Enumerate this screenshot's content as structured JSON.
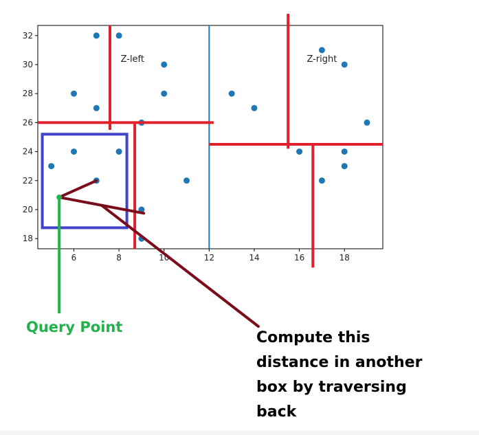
{
  "chart_data": {
    "type": "scatter",
    "title": "",
    "xlabel": "",
    "ylabel": "",
    "xlim": [
      4.4,
      19.7
    ],
    "ylim": [
      17.3,
      32.7
    ],
    "xticks": [
      6,
      8,
      10,
      12,
      14,
      16,
      18
    ],
    "yticks": [
      18,
      20,
      22,
      24,
      26,
      28,
      30,
      32
    ],
    "grid": false,
    "point_color": "#1f77b4",
    "points": [
      {
        "x": 7,
        "y": 32
      },
      {
        "x": 8,
        "y": 32
      },
      {
        "x": 10,
        "y": 30
      },
      {
        "x": 6,
        "y": 28
      },
      {
        "x": 10,
        "y": 28
      },
      {
        "x": 7,
        "y": 27
      },
      {
        "x": 9,
        "y": 26
      },
      {
        "x": 5,
        "y": 23
      },
      {
        "x": 6,
        "y": 24
      },
      {
        "x": 8,
        "y": 24
      },
      {
        "x": 7,
        "y": 22
      },
      {
        "x": 9,
        "y": 20
      },
      {
        "x": 9,
        "y": 18
      },
      {
        "x": 11,
        "y": 22
      },
      {
        "x": 13,
        "y": 28
      },
      {
        "x": 14,
        "y": 27
      },
      {
        "x": 17,
        "y": 31
      },
      {
        "x": 18,
        "y": 30
      },
      {
        "x": 19,
        "y": 26
      },
      {
        "x": 16,
        "y": 24
      },
      {
        "x": 18,
        "y": 24
      },
      {
        "x": 18,
        "y": 23
      },
      {
        "x": 17,
        "y": 22
      }
    ],
    "split_lines": [
      {
        "name": "root-split-x12",
        "orientation": "vertical",
        "at": 12,
        "from": 17.3,
        "to": 32.7,
        "color": "#1f77b4"
      },
      {
        "name": "left-split-y26",
        "orientation": "horizontal",
        "at": 26,
        "from": 4.4,
        "to": 12.2,
        "color": "#e0202a"
      },
      {
        "name": "left-top-split-x7.6",
        "orientation": "vertical",
        "at": 7.6,
        "from": 25.5,
        "to": 32.7,
        "color": "#e0202a"
      },
      {
        "name": "left-bottom-split-x8.7",
        "orientation": "vertical",
        "at": 8.7,
        "from": 17.3,
        "to": 26,
        "color": "#e0202a"
      },
      {
        "name": "right-split-y24.5",
        "orientation": "horizontal",
        "at": 24.5,
        "from": 12,
        "to": 19.7,
        "color": "#e0202a"
      },
      {
        "name": "right-top-split-x15.5",
        "orientation": "vertical",
        "at": 15.5,
        "from": 24.2,
        "to": 33.5,
        "color": "#e0202a"
      },
      {
        "name": "right-bottom-split-x16.6",
        "orientation": "vertical",
        "at": 16.6,
        "from": 16.0,
        "to": 24.5,
        "color": "#e0202a"
      }
    ],
    "query_box": {
      "x0": 4.6,
      "x1": 8.35,
      "y0": 18.75,
      "y1": 25.2,
      "color": "#4044c8"
    },
    "query_point": {
      "x": 5.35,
      "y": 20.85
    },
    "distance_lines": [
      {
        "to": {
          "x": 7.0,
          "y": 22.0
        }
      },
      {
        "to": {
          "x": 9.1,
          "y": 19.75
        }
      }
    ],
    "annotations": [
      {
        "text": "Z-left",
        "x": 8.6,
        "y": 30.2
      },
      {
        "text": "Z-right",
        "x": 17.0,
        "y": 30.2
      }
    ]
  },
  "callouts": {
    "query_point_label": "Query Point",
    "query_point_color": "#22b24c",
    "compute_lines": [
      "Compute this",
      "distance in another",
      "box by traversing",
      "back"
    ],
    "arrow_color": "#7a0d1c"
  }
}
